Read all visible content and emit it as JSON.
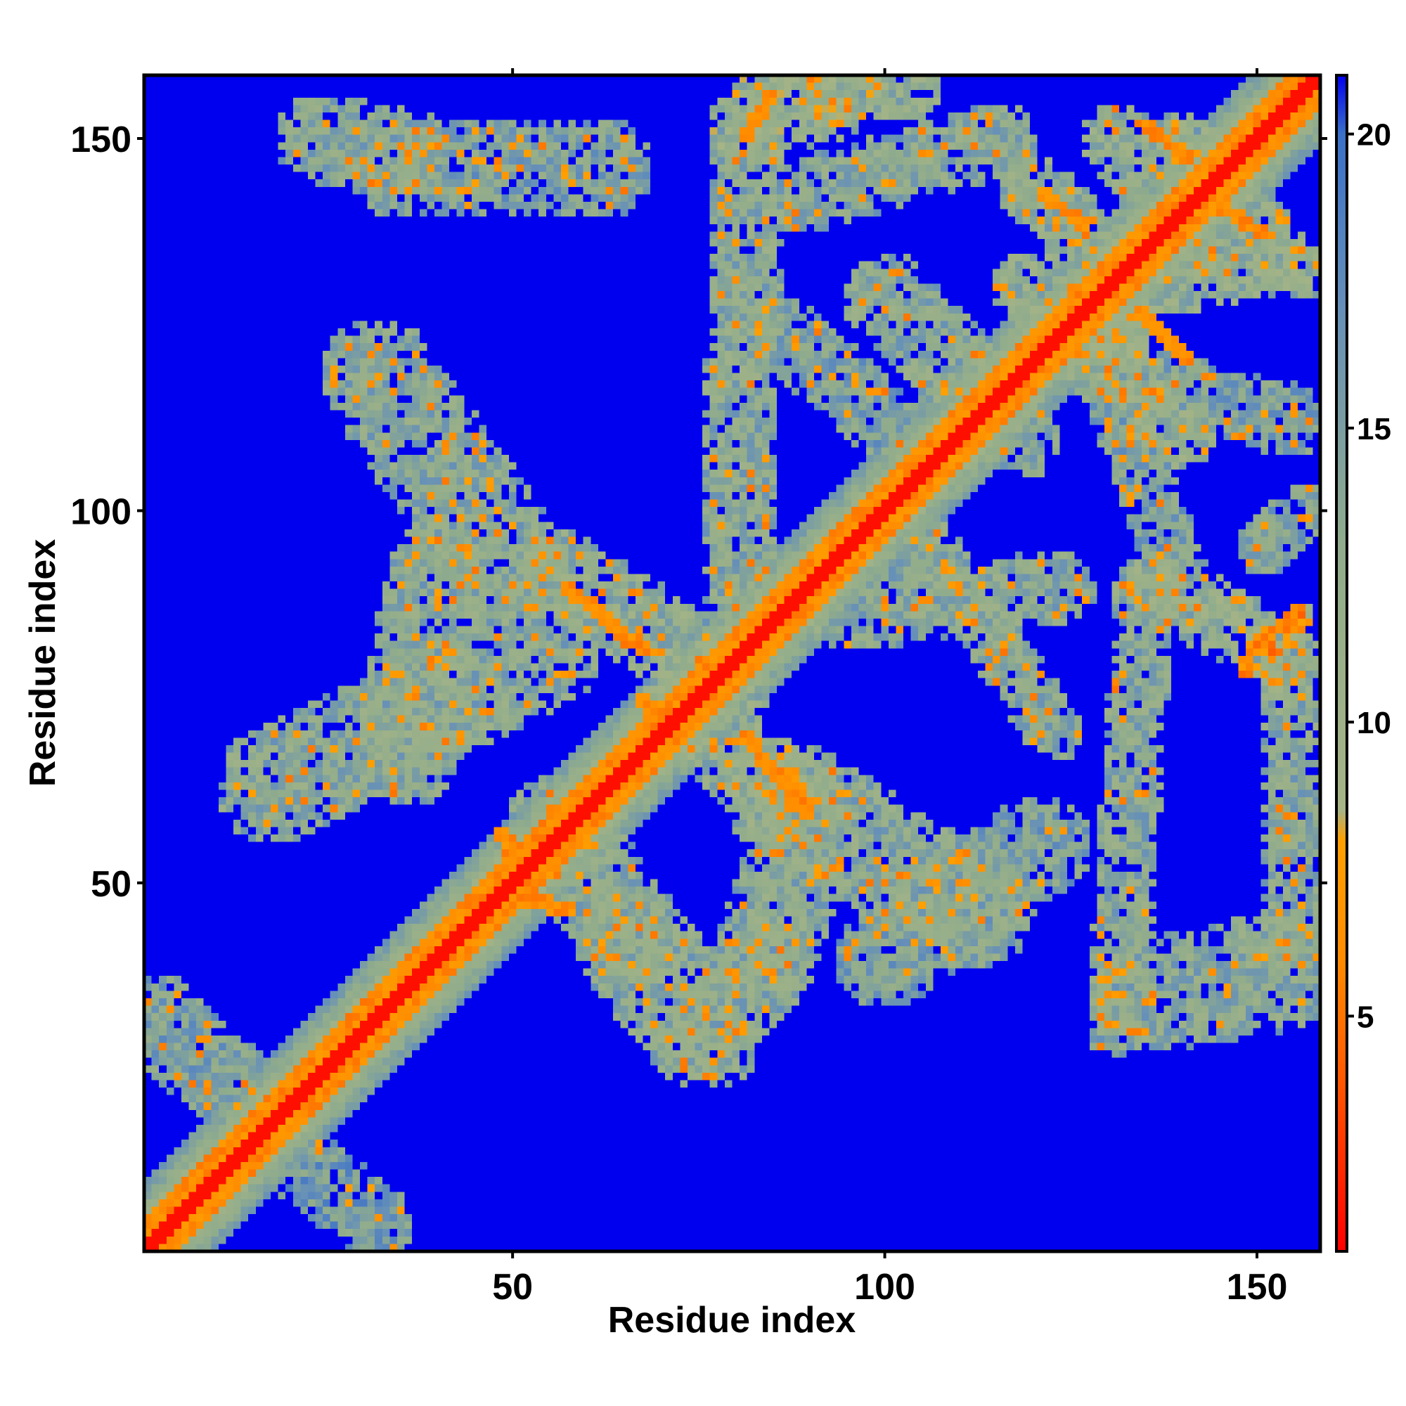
{
  "chart_data": {
    "type": "heatmap",
    "title": "",
    "xlabel": "Residue index",
    "ylabel": "Residue index",
    "xlim": [
      1,
      158
    ],
    "ylim": [
      1,
      158
    ],
    "x_ticks": [
      50,
      100,
      150
    ],
    "y_ticks": [
      50,
      100,
      150
    ],
    "x_tick_labels": [
      "50",
      "100",
      "150"
    ],
    "y_tick_labels": [
      "50",
      "100",
      "150"
    ],
    "colorbar": {
      "range": [
        1,
        21
      ],
      "ticks": [
        5,
        10,
        15,
        20
      ],
      "tick_labels": [
        "5",
        "10",
        "15",
        "20"
      ],
      "stops": [
        {
          "value": 1,
          "color": "#ff0000"
        },
        {
          "value": 4,
          "color": "#ff5a00"
        },
        {
          "value": 6,
          "color": "#ff8c00"
        },
        {
          "value": 8,
          "color": "#ffa000"
        },
        {
          "value": 8.5,
          "color": "#a6b486"
        },
        {
          "value": 13,
          "color": "#90ac8c"
        },
        {
          "value": 17,
          "color": "#6690b8"
        },
        {
          "value": 20,
          "color": "#3a70c8"
        },
        {
          "value": 21,
          "color": "#0000ee"
        }
      ]
    },
    "background_value": 21,
    "background_color": "#0000ee",
    "diagonal": {
      "core_value": 1.5,
      "inner_width": 1.3,
      "orange_width": 3.2,
      "value_halo_width": 7
    },
    "contact_bands": [
      {
        "from": [
          2,
          32
        ],
        "to": [
          15,
          20
        ],
        "value": 14,
        "width": 6
      },
      {
        "from": [
          22,
          12
        ],
        "to": [
          32,
          4
        ],
        "value": 15,
        "width": 5
      },
      {
        "from": [
          18,
          63
        ],
        "to": [
          54,
          81
        ],
        "value": 13,
        "width": 8
      },
      {
        "from": [
          36,
          67
        ],
        "to": [
          40,
          92
        ],
        "value": 13,
        "width": 7
      },
      {
        "from": [
          32,
          118
        ],
        "to": [
          50,
          92
        ],
        "value": 13,
        "width": 8
      },
      {
        "from": [
          35,
          146
        ],
        "to": [
          62,
          146
        ],
        "value": 14,
        "width": 7
      },
      {
        "from": [
          24,
          150
        ],
        "to": [
          36,
          148
        ],
        "value": 13,
        "width": 6
      },
      {
        "from": [
          56,
          92
        ],
        "to": [
          79,
          77
        ],
        "value": 12,
        "width": 6
      },
      {
        "from": [
          73,
          73
        ],
        "to": [
          86,
          62
        ],
        "value": 12,
        "width": 6
      },
      {
        "from": [
          56,
          58
        ],
        "to": [
          66,
          42
        ],
        "value": 13,
        "width": 7
      },
      {
        "from": [
          66,
          42
        ],
        "to": [
          76,
          30
        ],
        "value": 13,
        "width": 8
      },
      {
        "from": [
          76,
          30
        ],
        "to": [
          84,
          40
        ],
        "value": 13,
        "width": 7
      },
      {
        "from": [
          84,
          40
        ],
        "to": [
          90,
          60
        ],
        "value": 13,
        "width": 7
      },
      {
        "from": [
          86,
          62
        ],
        "to": [
          112,
          46
        ],
        "value": 13,
        "width": 8
      },
      {
        "from": [
          100,
          40
        ],
        "to": [
          121,
          55
        ],
        "value": 14,
        "width": 7
      },
      {
        "from": [
          82,
          150
        ],
        "to": [
          80,
          90
        ],
        "value": 13,
        "width": 5
      },
      {
        "from": [
          85,
          125
        ],
        "to": [
          100,
          112
        ],
        "value": 14,
        "width": 5
      },
      {
        "from": [
          82,
          152
        ],
        "to": [
          93,
          156
        ],
        "value": 11,
        "width": 6
      },
      {
        "from": [
          92,
          156
        ],
        "to": [
          104,
          156
        ],
        "value": 12,
        "width": 4
      },
      {
        "from": [
          88,
          142
        ],
        "to": [
          116,
          150
        ],
        "value": 13,
        "width": 5
      },
      {
        "from": [
          100,
          129
        ],
        "to": [
          118,
          110
        ],
        "value": 13,
        "width": 6
      },
      {
        "from": [
          106,
          95
        ],
        "to": [
          123,
          70
        ],
        "value": 13,
        "width": 4
      },
      {
        "from": [
          95,
          86
        ],
        "to": [
          124,
          90
        ],
        "value": 13,
        "width": 5
      },
      {
        "from": [
          120,
          143
        ],
        "to": [
          128,
          136
        ],
        "value": 12,
        "width": 5
      },
      {
        "from": [
          119,
          130
        ],
        "to": [
          131,
          123
        ],
        "value": 12,
        "width": 5
      },
      {
        "from": [
          128,
          122
        ],
        "to": [
          140,
          110
        ],
        "value": 12,
        "width": 5
      },
      {
        "from": [
          131,
          150
        ],
        "to": [
          140,
          140
        ],
        "value": 12,
        "width": 5
      },
      {
        "from": [
          137,
          131
        ],
        "to": [
          152,
          134
        ],
        "value": 12,
        "width": 5
      },
      {
        "from": [
          140,
          150
        ],
        "to": [
          156,
          132
        ],
        "value": 12,
        "width": 4
      },
      {
        "from": [
          130,
          118
        ],
        "to": [
          155,
          112
        ],
        "value": 14,
        "width": 5
      },
      {
        "from": [
          130,
          118
        ],
        "to": [
          140,
          90
        ],
        "value": 14,
        "width": 4
      },
      {
        "from": [
          137,
          90
        ],
        "to": [
          154,
          80
        ],
        "value": 12,
        "width": 5
      },
      {
        "from": [
          135,
          90
        ],
        "to": [
          131,
          30
        ],
        "value": 13,
        "width": 4
      },
      {
        "from": [
          154,
          80
        ],
        "to": [
          155,
          42
        ],
        "value": 13,
        "width": 4
      },
      {
        "from": [
          135,
          35
        ],
        "to": [
          153,
          38
        ],
        "value": 13,
        "width": 8
      },
      {
        "from": [
          149,
          79
        ],
        "to": [
          156,
          86
        ],
        "value": 7,
        "width": 2
      },
      {
        "from": [
          151,
          95
        ],
        "to": [
          156,
          100
        ],
        "value": 14,
        "width": 4
      }
    ],
    "orange_segments": [
      {
        "from": [
          81,
          150
        ],
        "to": [
          85,
          156
        ]
      },
      {
        "from": [
          135,
          152
        ],
        "to": [
          141,
          147
        ]
      },
      {
        "from": [
          121,
          143
        ],
        "to": [
          127,
          138
        ]
      },
      {
        "from": [
          142,
          143
        ],
        "to": [
          151,
          137
        ]
      },
      {
        "from": [
          134,
          127
        ],
        "to": [
          141,
          120
        ]
      },
      {
        "from": [
          149,
          81
        ],
        "to": [
          156,
          87
        ]
      },
      {
        "from": [
          57,
          90
        ],
        "to": [
          68,
          81
        ]
      },
      {
        "from": [
          81,
          70
        ],
        "to": [
          90,
          59
        ]
      },
      {
        "from": [
          67,
          75
        ],
        "to": [
          72,
          70
        ]
      },
      {
        "from": [
          48,
          57
        ],
        "to": [
          51,
          53
        ]
      },
      {
        "from": [
          52,
          48
        ],
        "to": [
          58,
          46
        ]
      }
    ]
  }
}
